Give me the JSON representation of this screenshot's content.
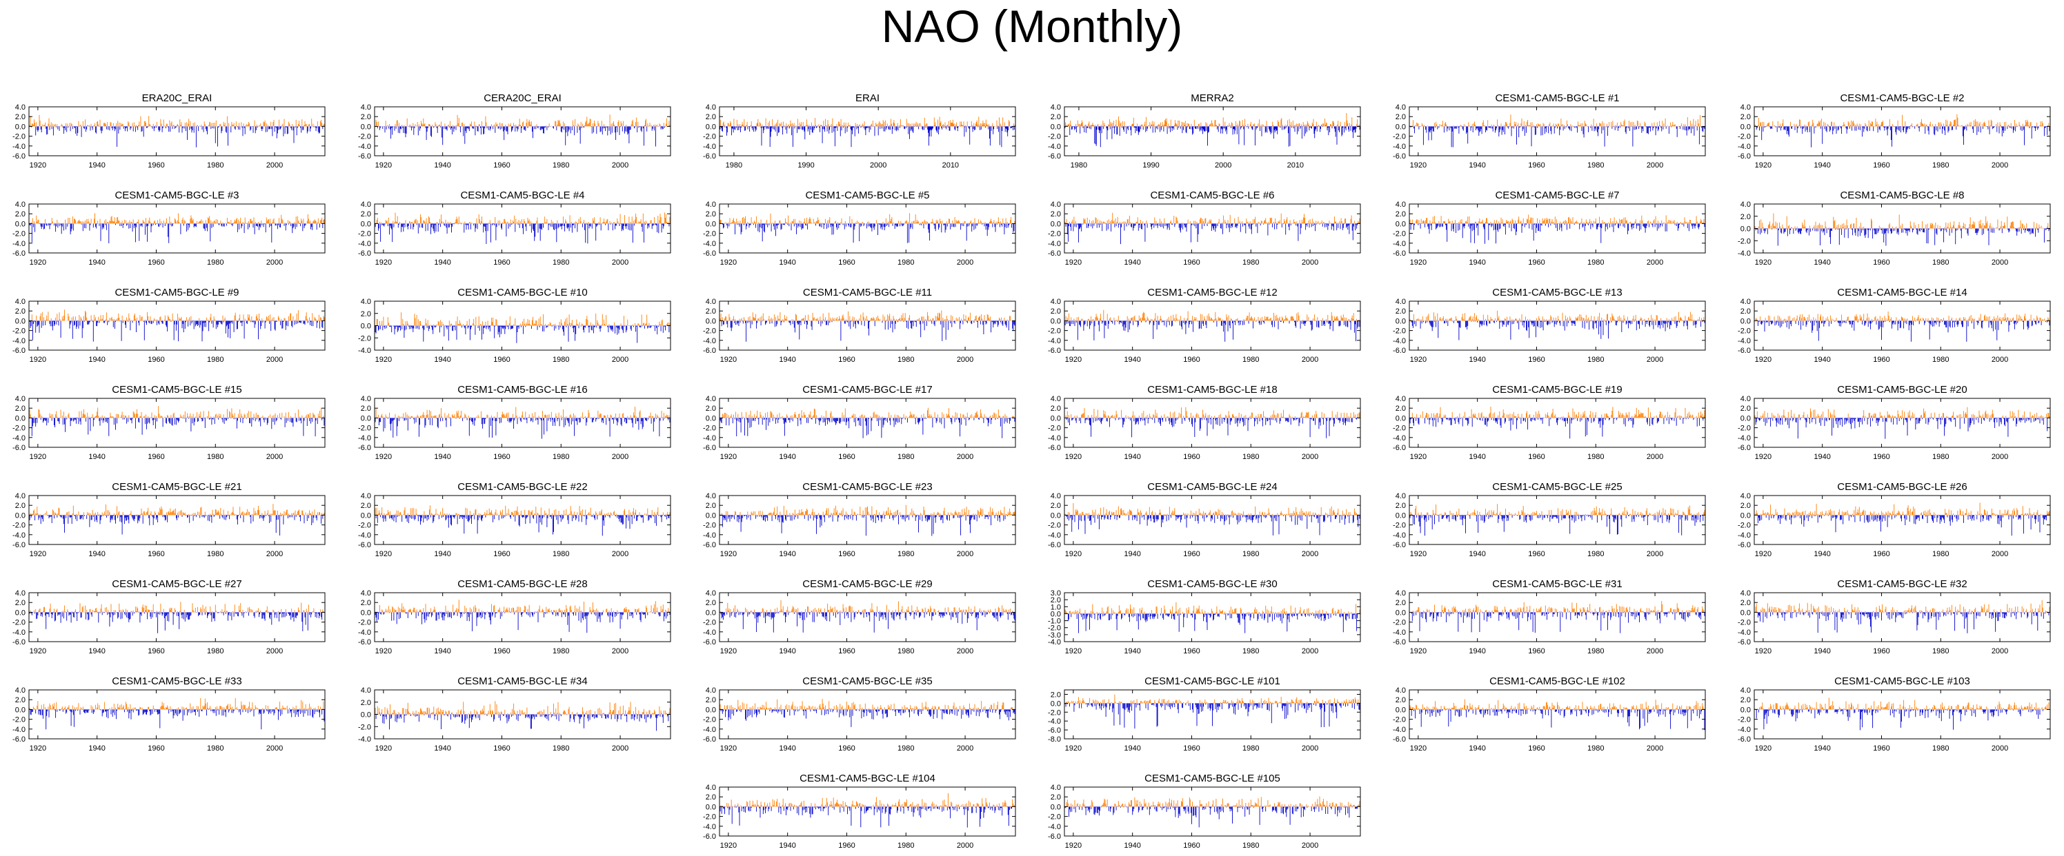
{
  "title": "NAO (Monthly)",
  "chart_data": {
    "type": "bar",
    "colors": {
      "positive": "#ff7f00",
      "negative": "#0000cd",
      "frame": "#000000"
    },
    "panels": [
      {
        "name": "ERA20C_ERAI",
        "x_ticks": [
          1920,
          1940,
          1960,
          1980,
          2000
        ],
        "xlim": [
          1917,
          2017
        ],
        "y_ticks": [
          4.0,
          2.0,
          0.0,
          -2.0,
          -4.0,
          -6.0
        ],
        "ylim": [
          -6,
          4
        ],
        "seed": 11
      },
      {
        "name": "CERA20C_ERAI",
        "x_ticks": [
          1920,
          1940,
          1960,
          1980,
          2000
        ],
        "xlim": [
          1917,
          2017
        ],
        "y_ticks": [
          4.0,
          2.0,
          0.0,
          -2.0,
          -4.0,
          -6.0
        ],
        "ylim": [
          -6,
          4
        ],
        "seed": 12
      },
      {
        "name": "ERAI",
        "x_ticks": [
          1980,
          1990,
          2000,
          2010
        ],
        "xlim": [
          1978,
          2019
        ],
        "y_ticks": [
          4.0,
          2.0,
          0.0,
          -2.0,
          -4.0,
          -6.0
        ],
        "ylim": [
          -6,
          4
        ],
        "seed": 13
      },
      {
        "name": "MERRA2",
        "x_ticks": [
          1980,
          1990,
          2000,
          2010
        ],
        "xlim": [
          1978,
          2019
        ],
        "y_ticks": [
          4.0,
          2.0,
          0.0,
          -2.0,
          -4.0,
          -6.0
        ],
        "ylim": [
          -6,
          4
        ],
        "seed": 14
      },
      {
        "name": "CESM1-CAM5-BGC-LE #1",
        "x_ticks": [
          1920,
          1940,
          1960,
          1980,
          2000
        ],
        "xlim": [
          1917,
          2017
        ],
        "y_ticks": [
          4.0,
          2.0,
          0.0,
          -2.0,
          -4.0,
          -6.0
        ],
        "ylim": [
          -6,
          4
        ],
        "seed": 15
      },
      {
        "name": "CESM1-CAM5-BGC-LE #2",
        "x_ticks": [
          1920,
          1940,
          1960,
          1980,
          2000
        ],
        "xlim": [
          1917,
          2017
        ],
        "y_ticks": [
          4.0,
          2.0,
          0.0,
          -2.0,
          -4.0,
          -6.0
        ],
        "ylim": [
          -6,
          4
        ],
        "seed": 16
      },
      {
        "name": "CESM1-CAM5-BGC-LE #3",
        "x_ticks": [
          1920,
          1940,
          1960,
          1980,
          2000
        ],
        "xlim": [
          1917,
          2017
        ],
        "y_ticks": [
          4.0,
          2.0,
          0.0,
          -2.0,
          -4.0,
          -6.0
        ],
        "ylim": [
          -6,
          4
        ],
        "seed": 17
      },
      {
        "name": "CESM1-CAM5-BGC-LE #4",
        "x_ticks": [
          1920,
          1940,
          1960,
          1980,
          2000
        ],
        "xlim": [
          1917,
          2017
        ],
        "y_ticks": [
          4.0,
          2.0,
          0.0,
          -2.0,
          -4.0,
          -6.0
        ],
        "ylim": [
          -6,
          4
        ],
        "seed": 18
      },
      {
        "name": "CESM1-CAM5-BGC-LE #5",
        "x_ticks": [
          1920,
          1940,
          1960,
          1980,
          2000
        ],
        "xlim": [
          1917,
          2017
        ],
        "y_ticks": [
          4.0,
          2.0,
          0.0,
          -2.0,
          -4.0,
          -6.0
        ],
        "ylim": [
          -6,
          4
        ],
        "seed": 19
      },
      {
        "name": "CESM1-CAM5-BGC-LE #6",
        "x_ticks": [
          1920,
          1940,
          1960,
          1980,
          2000
        ],
        "xlim": [
          1917,
          2017
        ],
        "y_ticks": [
          4.0,
          2.0,
          0.0,
          -2.0,
          -4.0,
          -6.0
        ],
        "ylim": [
          -6,
          4
        ],
        "seed": 20
      },
      {
        "name": "CESM1-CAM5-BGC-LE #7",
        "x_ticks": [
          1920,
          1940,
          1960,
          1980,
          2000
        ],
        "xlim": [
          1917,
          2017
        ],
        "y_ticks": [
          4.0,
          2.0,
          0.0,
          -2.0,
          -4.0,
          -6.0
        ],
        "ylim": [
          -6,
          4
        ],
        "seed": 21
      },
      {
        "name": "CESM1-CAM5-BGC-LE #8",
        "x_ticks": [
          1920,
          1940,
          1960,
          1980,
          2000
        ],
        "xlim": [
          1917,
          2017
        ],
        "y_ticks": [
          4.0,
          2.0,
          0.0,
          -2.0,
          -4.0
        ],
        "ylim": [
          -4,
          4
        ],
        "seed": 22
      },
      {
        "name": "CESM1-CAM5-BGC-LE #9",
        "x_ticks": [
          1920,
          1940,
          1960,
          1980,
          2000
        ],
        "xlim": [
          1917,
          2017
        ],
        "y_ticks": [
          4.0,
          2.0,
          0.0,
          -2.0,
          -4.0,
          -6.0
        ],
        "ylim": [
          -6,
          4
        ],
        "seed": 23
      },
      {
        "name": "CESM1-CAM5-BGC-LE #10",
        "x_ticks": [
          1920,
          1940,
          1960,
          1980,
          2000
        ],
        "xlim": [
          1917,
          2017
        ],
        "y_ticks": [
          4.0,
          2.0,
          0.0,
          -2.0,
          -4.0
        ],
        "ylim": [
          -4,
          4
        ],
        "seed": 24
      },
      {
        "name": "CESM1-CAM5-BGC-LE #11",
        "x_ticks": [
          1920,
          1940,
          1960,
          1980,
          2000
        ],
        "xlim": [
          1917,
          2017
        ],
        "y_ticks": [
          4.0,
          2.0,
          0.0,
          -2.0,
          -4.0,
          -6.0
        ],
        "ylim": [
          -6,
          4
        ],
        "seed": 25
      },
      {
        "name": "CESM1-CAM5-BGC-LE #12",
        "x_ticks": [
          1920,
          1940,
          1960,
          1980,
          2000
        ],
        "xlim": [
          1917,
          2017
        ],
        "y_ticks": [
          4.0,
          2.0,
          0.0,
          -2.0,
          -4.0,
          -6.0
        ],
        "ylim": [
          -6,
          4
        ],
        "seed": 26
      },
      {
        "name": "CESM1-CAM5-BGC-LE #13",
        "x_ticks": [
          1920,
          1940,
          1960,
          1980,
          2000
        ],
        "xlim": [
          1917,
          2017
        ],
        "y_ticks": [
          4.0,
          2.0,
          0.0,
          -2.0,
          -4.0,
          -6.0
        ],
        "ylim": [
          -6,
          4
        ],
        "seed": 27
      },
      {
        "name": "CESM1-CAM5-BGC-LE #14",
        "x_ticks": [
          1920,
          1940,
          1960,
          1980,
          2000
        ],
        "xlim": [
          1917,
          2017
        ],
        "y_ticks": [
          4.0,
          2.0,
          0.0,
          -2.0,
          -4.0,
          -6.0
        ],
        "ylim": [
          -6,
          4
        ],
        "seed": 28
      },
      {
        "name": "CESM1-CAM5-BGC-LE #15",
        "x_ticks": [
          1920,
          1940,
          1960,
          1980,
          2000
        ],
        "xlim": [
          1917,
          2017
        ],
        "y_ticks": [
          4.0,
          2.0,
          0.0,
          -2.0,
          -4.0,
          -6.0
        ],
        "ylim": [
          -6,
          4
        ],
        "seed": 29
      },
      {
        "name": "CESM1-CAM5-BGC-LE #16",
        "x_ticks": [
          1920,
          1940,
          1960,
          1980,
          2000
        ],
        "xlim": [
          1917,
          2017
        ],
        "y_ticks": [
          4.0,
          2.0,
          0.0,
          -2.0,
          -4.0,
          -6.0
        ],
        "ylim": [
          -6,
          4
        ],
        "seed": 30
      },
      {
        "name": "CESM1-CAM5-BGC-LE #17",
        "x_ticks": [
          1920,
          1940,
          1960,
          1980,
          2000
        ],
        "xlim": [
          1917,
          2017
        ],
        "y_ticks": [
          4.0,
          2.0,
          0.0,
          -2.0,
          -4.0,
          -6.0
        ],
        "ylim": [
          -6,
          4
        ],
        "seed": 31
      },
      {
        "name": "CESM1-CAM5-BGC-LE #18",
        "x_ticks": [
          1920,
          1940,
          1960,
          1980,
          2000
        ],
        "xlim": [
          1917,
          2017
        ],
        "y_ticks": [
          4.0,
          2.0,
          0.0,
          -2.0,
          -4.0,
          -6.0
        ],
        "ylim": [
          -6,
          4
        ],
        "seed": 32
      },
      {
        "name": "CESM1-CAM5-BGC-LE #19",
        "x_ticks": [
          1920,
          1940,
          1960,
          1980,
          2000
        ],
        "xlim": [
          1917,
          2017
        ],
        "y_ticks": [
          4.0,
          2.0,
          0.0,
          -2.0,
          -4.0,
          -6.0
        ],
        "ylim": [
          -6,
          4
        ],
        "seed": 33
      },
      {
        "name": "CESM1-CAM5-BGC-LE #20",
        "x_ticks": [
          1920,
          1940,
          1960,
          1980,
          2000
        ],
        "xlim": [
          1917,
          2017
        ],
        "y_ticks": [
          4.0,
          2.0,
          0.0,
          -2.0,
          -4.0,
          -6.0
        ],
        "ylim": [
          -6,
          4
        ],
        "seed": 34
      },
      {
        "name": "CESM1-CAM5-BGC-LE #21",
        "x_ticks": [
          1920,
          1940,
          1960,
          1980,
          2000
        ],
        "xlim": [
          1917,
          2017
        ],
        "y_ticks": [
          4.0,
          2.0,
          0.0,
          -2.0,
          -4.0,
          -6.0
        ],
        "ylim": [
          -6,
          4
        ],
        "seed": 35
      },
      {
        "name": "CESM1-CAM5-BGC-LE #22",
        "x_ticks": [
          1920,
          1940,
          1960,
          1980,
          2000
        ],
        "xlim": [
          1917,
          2017
        ],
        "y_ticks": [
          4.0,
          2.0,
          0.0,
          -2.0,
          -4.0,
          -6.0
        ],
        "ylim": [
          -6,
          4
        ],
        "seed": 36
      },
      {
        "name": "CESM1-CAM5-BGC-LE #23",
        "x_ticks": [
          1920,
          1940,
          1960,
          1980,
          2000
        ],
        "xlim": [
          1917,
          2017
        ],
        "y_ticks": [
          4.0,
          2.0,
          0.0,
          -2.0,
          -4.0,
          -6.0
        ],
        "ylim": [
          -6,
          4
        ],
        "seed": 37
      },
      {
        "name": "CESM1-CAM5-BGC-LE #24",
        "x_ticks": [
          1920,
          1940,
          1960,
          1980,
          2000
        ],
        "xlim": [
          1917,
          2017
        ],
        "y_ticks": [
          4.0,
          2.0,
          0.0,
          -2.0,
          -4.0,
          -6.0
        ],
        "ylim": [
          -6,
          4
        ],
        "seed": 38
      },
      {
        "name": "CESM1-CAM5-BGC-LE #25",
        "x_ticks": [
          1920,
          1940,
          1960,
          1980,
          2000
        ],
        "xlim": [
          1917,
          2017
        ],
        "y_ticks": [
          4.0,
          2.0,
          0.0,
          -2.0,
          -4.0,
          -6.0
        ],
        "ylim": [
          -6,
          4
        ],
        "seed": 39
      },
      {
        "name": "CESM1-CAM5-BGC-LE #26",
        "x_ticks": [
          1920,
          1940,
          1960,
          1980,
          2000
        ],
        "xlim": [
          1917,
          2017
        ],
        "y_ticks": [
          4.0,
          2.0,
          0.0,
          -2.0,
          -4.0,
          -6.0
        ],
        "ylim": [
          -6,
          4
        ],
        "seed": 40
      },
      {
        "name": "CESM1-CAM5-BGC-LE #27",
        "x_ticks": [
          1920,
          1940,
          1960,
          1980,
          2000
        ],
        "xlim": [
          1917,
          2017
        ],
        "y_ticks": [
          4.0,
          2.0,
          0.0,
          -2.0,
          -4.0,
          -6.0
        ],
        "ylim": [
          -6,
          4
        ],
        "seed": 41
      },
      {
        "name": "CESM1-CAM5-BGC-LE #28",
        "x_ticks": [
          1920,
          1940,
          1960,
          1980,
          2000
        ],
        "xlim": [
          1917,
          2017
        ],
        "y_ticks": [
          4.0,
          2.0,
          0.0,
          -2.0,
          -4.0,
          -6.0
        ],
        "ylim": [
          -6,
          4
        ],
        "seed": 42
      },
      {
        "name": "CESM1-CAM5-BGC-LE #29",
        "x_ticks": [
          1920,
          1940,
          1960,
          1980,
          2000
        ],
        "xlim": [
          1917,
          2017
        ],
        "y_ticks": [
          4.0,
          2.0,
          0.0,
          -2.0,
          -4.0,
          -6.0
        ],
        "ylim": [
          -6,
          4
        ],
        "seed": 43
      },
      {
        "name": "CESM1-CAM5-BGC-LE #30",
        "x_ticks": [
          1920,
          1940,
          1960,
          1980,
          2000
        ],
        "xlim": [
          1917,
          2017
        ],
        "y_ticks": [
          3.0,
          2.0,
          1.0,
          0.0,
          -1.0,
          -2.0,
          -3.0,
          -4.0
        ],
        "ylim": [
          -4,
          3
        ],
        "seed": 44
      },
      {
        "name": "CESM1-CAM5-BGC-LE #31",
        "x_ticks": [
          1920,
          1940,
          1960,
          1980,
          2000
        ],
        "xlim": [
          1917,
          2017
        ],
        "y_ticks": [
          4.0,
          2.0,
          0.0,
          -2.0,
          -4.0,
          -6.0
        ],
        "ylim": [
          -6,
          4
        ],
        "seed": 45
      },
      {
        "name": "CESM1-CAM5-BGC-LE #32",
        "x_ticks": [
          1920,
          1940,
          1960,
          1980,
          2000
        ],
        "xlim": [
          1917,
          2017
        ],
        "y_ticks": [
          4.0,
          2.0,
          0.0,
          -2.0,
          -4.0,
          -6.0
        ],
        "ylim": [
          -6,
          4
        ],
        "seed": 46
      },
      {
        "name": "CESM1-CAM5-BGC-LE #33",
        "x_ticks": [
          1920,
          1940,
          1960,
          1980,
          2000
        ],
        "xlim": [
          1917,
          2017
        ],
        "y_ticks": [
          4.0,
          2.0,
          0.0,
          -2.0,
          -4.0,
          -6.0
        ],
        "ylim": [
          -6,
          4
        ],
        "seed": 47
      },
      {
        "name": "CESM1-CAM5-BGC-LE #34",
        "x_ticks": [
          1920,
          1940,
          1960,
          1980,
          2000
        ],
        "xlim": [
          1917,
          2017
        ],
        "y_ticks": [
          4.0,
          2.0,
          0.0,
          -2.0,
          -4.0
        ],
        "ylim": [
          -4,
          4
        ],
        "seed": 48
      },
      {
        "name": "CESM1-CAM5-BGC-LE #35",
        "x_ticks": [
          1920,
          1940,
          1960,
          1980,
          2000
        ],
        "xlim": [
          1917,
          2017
        ],
        "y_ticks": [
          4.0,
          2.0,
          0.0,
          -2.0,
          -4.0,
          -6.0
        ],
        "ylim": [
          -6,
          4
        ],
        "seed": 49
      },
      {
        "name": "CESM1-CAM5-BGC-LE #101",
        "x_ticks": [
          1920,
          1940,
          1960,
          1980,
          2000
        ],
        "xlim": [
          1917,
          2017
        ],
        "y_ticks": [
          2.0,
          0.0,
          -2.0,
          -4.0,
          -6.0,
          -8.0
        ],
        "ylim": [
          -8,
          3
        ],
        "seed": 50
      },
      {
        "name": "CESM1-CAM5-BGC-LE #102",
        "x_ticks": [
          1920,
          1940,
          1960,
          1980,
          2000
        ],
        "xlim": [
          1917,
          2017
        ],
        "y_ticks": [
          4.0,
          2.0,
          0.0,
          -2.0,
          -4.0,
          -6.0
        ],
        "ylim": [
          -6,
          4
        ],
        "seed": 51
      },
      {
        "name": "CESM1-CAM5-BGC-LE #103",
        "x_ticks": [
          1920,
          1940,
          1960,
          1980,
          2000
        ],
        "xlim": [
          1917,
          2017
        ],
        "y_ticks": [
          4.0,
          2.0,
          0.0,
          -2.0,
          -4.0,
          -6.0
        ],
        "ylim": [
          -6,
          4
        ],
        "seed": 52
      },
      {
        "name": "CESM1-CAM5-BGC-LE #104",
        "x_ticks": [
          1920,
          1940,
          1960,
          1980,
          2000
        ],
        "xlim": [
          1917,
          2017
        ],
        "y_ticks": [
          4.0,
          2.0,
          0.0,
          -2.0,
          -4.0,
          -6.0
        ],
        "ylim": [
          -6,
          4
        ],
        "seed": 53
      },
      {
        "name": "CESM1-CAM5-BGC-LE #105",
        "x_ticks": [
          1920,
          1940,
          1960,
          1980,
          2000
        ],
        "xlim": [
          1917,
          2017
        ],
        "y_ticks": [
          4.0,
          2.0,
          0.0,
          -2.0,
          -4.0,
          -6.0
        ],
        "ylim": [
          -6,
          4
        ],
        "seed": 54
      }
    ]
  }
}
